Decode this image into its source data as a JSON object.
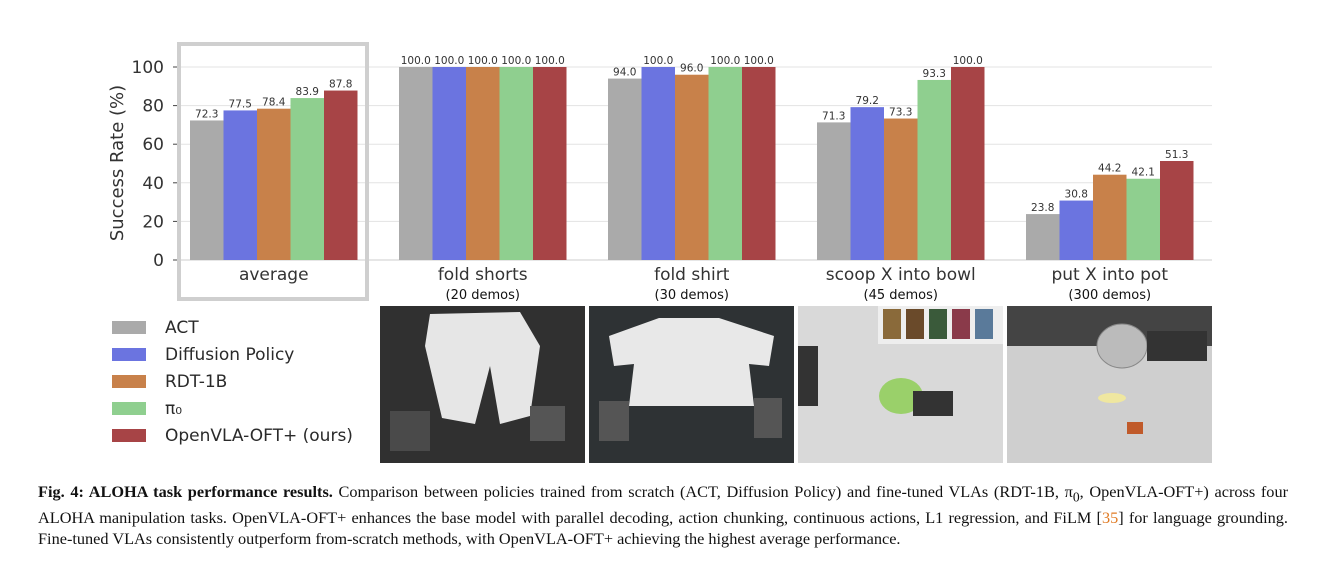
{
  "chart_data": {
    "type": "bar",
    "ylabel": "Success Rate (%)",
    "ylim": [
      0,
      105
    ],
    "yticks": [
      "0",
      "20",
      "40",
      "60",
      "80",
      "100"
    ],
    "grid": true,
    "categories": [
      "average",
      "fold shorts",
      "fold shirt",
      "scoop X into bowl",
      "put X into pot"
    ],
    "category_subtitles": [
      "",
      "(20 demos)",
      "(30 demos)",
      "(45 demos)",
      "(300 demos)"
    ],
    "highlight_category": "average",
    "series": [
      {
        "name": "ACT",
        "color": "#aaaaaa",
        "values": [
          72.3,
          100.0,
          94.0,
          71.3,
          23.8
        ],
        "labels": [
          "72.3",
          "100.0",
          "94.0",
          "71.3",
          "23.8"
        ]
      },
      {
        "name": "Diffusion Policy",
        "color": "#6b74e0",
        "values": [
          77.5,
          100.0,
          100.0,
          79.2,
          30.8
        ],
        "labels": [
          "77.5",
          "100.0",
          "100.0",
          "79.2",
          "30.8"
        ]
      },
      {
        "name": "RDT-1B",
        "color": "#c8814a",
        "values": [
          78.4,
          100.0,
          96.0,
          73.3,
          44.2
        ],
        "labels": [
          "78.4",
          "100.0",
          "96.0",
          "73.3",
          "44.2"
        ]
      },
      {
        "name": "π₀",
        "color": "#8fcf8f",
        "values": [
          83.9,
          100.0,
          100.0,
          93.3,
          42.1
        ],
        "labels": [
          "83.9",
          "100.0",
          "100.0",
          "93.3",
          "42.1"
        ]
      },
      {
        "name": "OpenVLA-OFT+ (ours)",
        "color": "#a74446",
        "values": [
          87.8,
          100.0,
          100.0,
          100.0,
          51.3
        ],
        "labels": [
          "87.8",
          "100.0",
          "100.0",
          "100.0",
          "51.3"
        ]
      }
    ]
  },
  "caption": {
    "label": "Fig. 4:",
    "title": "ALOHA task performance results.",
    "text_1": " Comparison between policies trained from scratch (ACT, Diffusion Policy) and fine-tuned VLAs (RDT-1B, π",
    "text_sub": "0",
    "text_2": ", OpenVLA-OFT+) across four ALOHA manipulation tasks. OpenVLA-OFT+ enhances the base model with parallel decoding, action chunking, continuous actions, L1 regression, and FiLM [",
    "ref": "35",
    "text_3": "] for language grounding. Fine-tuned VLAs consistently outperform from-scratch methods, with OpenVLA-OFT+ achieving the highest average performance."
  }
}
